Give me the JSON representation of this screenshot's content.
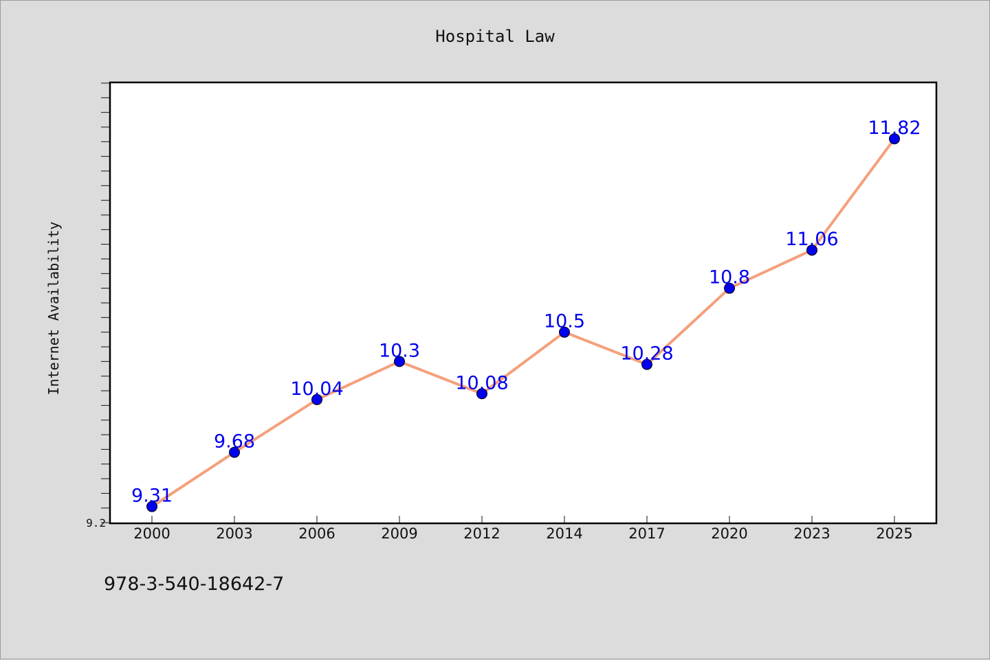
{
  "chart_data": {
    "type": "line",
    "title": "Hospital Law",
    "xlabel": "",
    "ylabel": "Internet Availability",
    "categories": [
      "2000",
      "2003",
      "2006",
      "2009",
      "2012",
      "2014",
      "2017",
      "2020",
      "2023",
      "2025"
    ],
    "series": [
      {
        "values": [
          9.31,
          9.68,
          10.04,
          10.3,
          10.08,
          10.5,
          10.28,
          10.8,
          11.06,
          11.82
        ],
        "line_color": "#f4a07c",
        "marker_color": "#0000ee",
        "label_color": "#0000ee"
      }
    ],
    "ylim": [
      9.2,
      12.2
    ],
    "y_tick_labels": [
      "9.2"
    ],
    "grid": false,
    "legend": "none"
  },
  "footer": {
    "code": "978-3-540-18642-7"
  }
}
